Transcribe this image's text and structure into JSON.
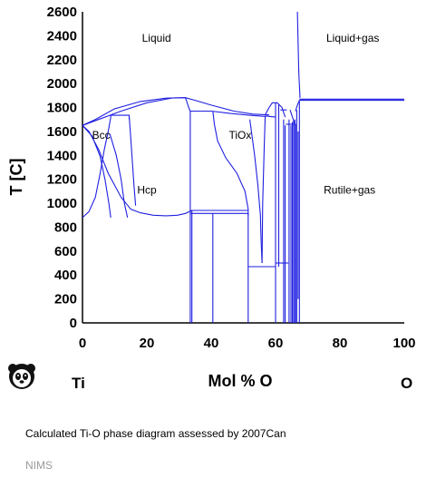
{
  "chart_data": {
    "type": "phase-diagram",
    "title": "",
    "xlabel": "Mol % O",
    "ylabel": "T [C]",
    "xlim": [
      0,
      100
    ],
    "ylim": [
      0,
      2600
    ],
    "x_ticks": [
      0,
      20,
      40,
      60,
      80,
      100
    ],
    "y_ticks": [
      0,
      200,
      400,
      600,
      800,
      1000,
      1200,
      1400,
      1600,
      1800,
      2000,
      2200,
      2400,
      2600
    ],
    "endpoints": {
      "left": "Ti",
      "right": "O"
    },
    "regions": [
      {
        "name": "Liquid",
        "x": 23,
        "y": 2350
      },
      {
        "name": "Liquid+gas",
        "x": 84,
        "y": 2350
      },
      {
        "name": "Bcc",
        "x": 3,
        "y": 1540
      },
      {
        "name": "TiOx",
        "x": 49,
        "y": 1540
      },
      {
        "name": "Hcp",
        "x": 20,
        "y": 1080
      },
      {
        "name": "Rutile+gas",
        "x": 83,
        "y": 1080
      }
    ],
    "lines": [
      [
        [
          0,
          1650
        ],
        [
          4,
          1700
        ],
        [
          10,
          1790
        ],
        [
          18,
          1850
        ],
        [
          26,
          1878
        ],
        [
          32,
          1882
        ],
        [
          35,
          1860
        ],
        [
          40,
          1820
        ],
        [
          47,
          1770
        ],
        [
          53,
          1745
        ],
        [
          58,
          1738
        ]
      ],
      [
        [
          0,
          1650
        ],
        [
          5,
          1700
        ],
        [
          12,
          1770
        ],
        [
          20,
          1840
        ],
        [
          28,
          1880
        ],
        [
          32,
          1882
        ]
      ],
      [
        [
          0,
          1650
        ],
        [
          3,
          1560
        ],
        [
          5.5,
          1390
        ],
        [
          7,
          1200
        ],
        [
          8.2,
          1000
        ],
        [
          8.8,
          880
        ]
      ],
      [
        [
          0,
          1650
        ],
        [
          2,
          1600
        ],
        [
          5,
          1450
        ],
        [
          8,
          1250
        ],
        [
          12,
          1050
        ],
        [
          15,
          950
        ],
        [
          18,
          920
        ],
        [
          22,
          900
        ],
        [
          26,
          895
        ],
        [
          29.5,
          900
        ],
        [
          32,
          915
        ],
        [
          34,
          940
        ]
      ],
      [
        [
          0,
          880
        ],
        [
          2,
          930
        ],
        [
          4,
          1050
        ],
        [
          5.5,
          1250
        ],
        [
          6.8,
          1450
        ],
        [
          8,
          1600
        ],
        [
          8.8,
          1720
        ]
      ],
      [
        [
          8.5,
          1580
        ],
        [
          10.5,
          1400
        ],
        [
          12,
          1200
        ],
        [
          13,
          1000
        ],
        [
          14,
          880
        ]
      ],
      [
        [
          14.5,
          1730
        ],
        [
          15,
          1540
        ],
        [
          15.5,
          1350
        ],
        [
          16,
          1150
        ],
        [
          16.5,
          980
        ]
      ],
      [
        [
          8.8,
          1735
        ],
        [
          14.5,
          1735
        ]
      ],
      [
        [
          8.8,
          1720
        ],
        [
          8.8,
          1740
        ]
      ],
      [
        [
          14.5,
          1700
        ],
        [
          14.5,
          1740
        ]
      ],
      [
        [
          32,
          1882
        ],
        [
          33,
          1800
        ],
        [
          33.5,
          1770
        ]
      ],
      [
        [
          33.5,
          1770
        ],
        [
          33.5,
          0
        ]
      ],
      [
        [
          34,
          940
        ],
        [
          34,
          0
        ]
      ],
      [
        [
          33.5,
          1770
        ],
        [
          40,
          1770
        ],
        [
          46,
          1750
        ],
        [
          52,
          1735
        ],
        [
          57,
          1725
        ]
      ],
      [
        [
          40.5,
          1770
        ],
        [
          41,
          1660
        ],
        [
          42,
          1520
        ],
        [
          44.5,
          1380
        ],
        [
          48,
          1250
        ],
        [
          50.5,
          1100
        ],
        [
          51.5,
          950
        ],
        [
          51.5,
          900
        ]
      ],
      [
        [
          33.5,
          940
        ],
        [
          51.5,
          940
        ]
      ],
      [
        [
          33.5,
          915
        ],
        [
          51.5,
          915
        ]
      ],
      [
        [
          40.5,
          915
        ],
        [
          40.5,
          0
        ]
      ],
      [
        [
          51.5,
          915
        ],
        [
          51.5,
          0
        ]
      ],
      [
        [
          51.5,
          470
        ],
        [
          60,
          470
        ]
      ],
      [
        [
          52,
          1700
        ],
        [
          53.5,
          1400
        ],
        [
          54.5,
          1150
        ],
        [
          55.3,
          900
        ],
        [
          55.5,
          700
        ],
        [
          55.8,
          500
        ]
      ],
      [
        [
          55.8,
          500
        ],
        [
          56,
          1000
        ],
        [
          56.5,
          1500
        ],
        [
          56.8,
          1730
        ]
      ],
      [
        [
          56.8,
          1730
        ],
        [
          60,
          1720
        ]
      ],
      [
        [
          56.8,
          1740
        ],
        [
          58,
          1800
        ],
        [
          59,
          1840
        ],
        [
          60.5,
          1840
        ],
        [
          62,
          1800
        ],
        [
          63,
          1720
        ]
      ],
      [
        [
          60,
          1840
        ],
        [
          60,
          0
        ]
      ],
      [
        [
          61,
          1830
        ],
        [
          61,
          470
        ]
      ],
      [
        [
          60,
          500
        ],
        [
          64,
          500
        ]
      ],
      [
        [
          61.5,
          1780
        ],
        [
          63.5,
          1780
        ]
      ],
      [
        [
          62.5,
          1700
        ],
        [
          62.5,
          0
        ]
      ],
      [
        [
          63,
          1650
        ],
        [
          63,
          0
        ]
      ],
      [
        [
          63.2,
          1660
        ],
        [
          66.2,
          1660
        ]
      ],
      [
        [
          64.2,
          1700
        ],
        [
          64.2,
          0
        ]
      ],
      [
        [
          64.8,
          1650
        ],
        [
          64.8,
          0
        ]
      ],
      [
        [
          65.2,
          1680
        ],
        [
          65.2,
          0
        ]
      ],
      [
        [
          65.6,
          1690
        ],
        [
          65.6,
          0
        ]
      ],
      [
        [
          66,
          1700
        ],
        [
          66,
          0
        ]
      ],
      [
        [
          66.2,
          1660
        ],
        [
          66.2,
          0
        ]
      ],
      [
        [
          66.6,
          1780
        ],
        [
          66.6,
          0
        ]
      ],
      [
        [
          67,
          1600
        ],
        [
          67,
          200
        ]
      ],
      [
        [
          67.4,
          1860
        ],
        [
          67.4,
          0
        ]
      ],
      [
        [
          66.2,
          1770
        ],
        [
          66.8,
          1820
        ],
        [
          67.4,
          1860
        ]
      ],
      [
        [
          64.5,
          1780
        ],
        [
          65.5,
          1700
        ],
        [
          66.2,
          1660
        ]
      ],
      [
        [
          66.8,
          2600
        ],
        [
          67.2,
          2100
        ],
        [
          67.6,
          1880
        ]
      ],
      [
        [
          67.4,
          1870
        ],
        [
          100,
          1870
        ]
      ],
      [
        [
          67.4,
          1860
        ],
        [
          100,
          1860
        ]
      ]
    ]
  }
}
